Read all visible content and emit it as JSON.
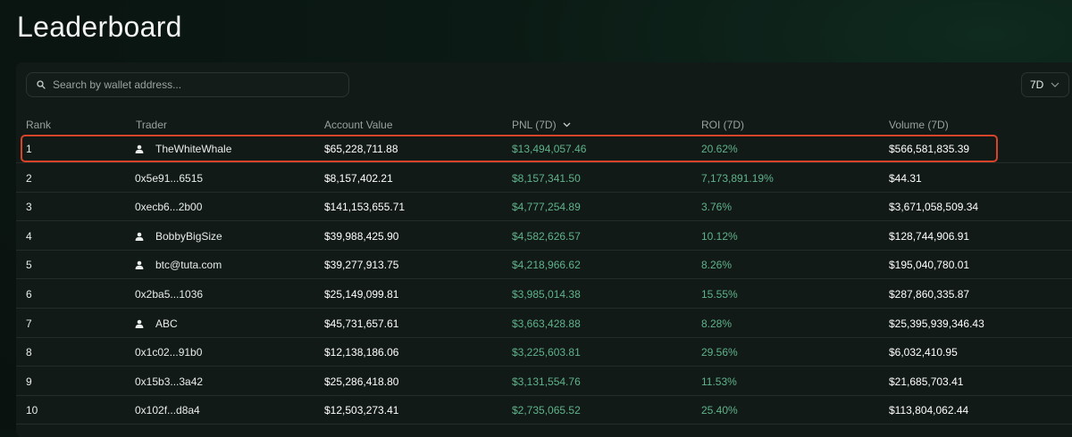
{
  "page": {
    "title": "Leaderboard"
  },
  "search": {
    "placeholder": "Search by wallet address..."
  },
  "period_selector": {
    "value": "7D"
  },
  "table": {
    "columns": {
      "rank": "Rank",
      "trader": "Trader",
      "account_value": "Account Value",
      "pnl": "PNL (7D)",
      "roi": "ROI (7D)",
      "volume": "Volume (7D)"
    },
    "sorted_by": "pnl",
    "rows": [
      {
        "rank": "1",
        "trader": "TheWhiteWhale",
        "has_profile": true,
        "account_value": "$65,228,711.88",
        "pnl": "$13,494,057.46",
        "roi": "20.62%",
        "volume": "$566,581,835.39"
      },
      {
        "rank": "2",
        "trader": "0x5e91...6515",
        "has_profile": false,
        "account_value": "$8,157,402.21",
        "pnl": "$8,157,341.50",
        "roi": "7,173,891.19%",
        "volume": "$44.31"
      },
      {
        "rank": "3",
        "trader": "0xecb6...2b00",
        "has_profile": false,
        "account_value": "$141,153,655.71",
        "pnl": "$4,777,254.89",
        "roi": "3.76%",
        "volume": "$3,671,058,509.34"
      },
      {
        "rank": "4",
        "trader": "BobbyBigSize",
        "has_profile": true,
        "account_value": "$39,988,425.90",
        "pnl": "$4,582,626.57",
        "roi": "10.12%",
        "volume": "$128,744,906.91"
      },
      {
        "rank": "5",
        "trader": "btc@tuta.com",
        "has_profile": true,
        "account_value": "$39,277,913.75",
        "pnl": "$4,218,966.62",
        "roi": "8.26%",
        "volume": "$195,040,780.01"
      },
      {
        "rank": "6",
        "trader": "0x2ba5...1036",
        "has_profile": false,
        "account_value": "$25,149,099.81",
        "pnl": "$3,985,014.38",
        "roi": "15.55%",
        "volume": "$287,860,335.87"
      },
      {
        "rank": "7",
        "trader": "ABC",
        "has_profile": true,
        "account_value": "$45,731,657.61",
        "pnl": "$3,663,428.88",
        "roi": "8.28%",
        "volume": "$25,395,939,346.43"
      },
      {
        "rank": "8",
        "trader": "0x1c02...91b0",
        "has_profile": false,
        "account_value": "$12,138,186.06",
        "pnl": "$3,225,603.81",
        "roi": "29.56%",
        "volume": "$6,032,410.95"
      },
      {
        "rank": "9",
        "trader": "0x15b3...3a42",
        "has_profile": false,
        "account_value": "$25,286,418.80",
        "pnl": "$3,131,554.76",
        "roi": "11.53%",
        "volume": "$21,685,703.41"
      },
      {
        "rank": "10",
        "trader": "0x102f...d8a4",
        "has_profile": false,
        "account_value": "$12,503,273.41",
        "pnl": "$2,735,065.52",
        "roi": "25.40%",
        "volume": "$113,804,062.44"
      }
    ]
  },
  "colors": {
    "positive": "#5fb38c",
    "highlight": "#d9432a",
    "background": "#0b1a14"
  },
  "icons": {
    "search": "search-icon",
    "profile": "person-icon",
    "sort": "chevron-down-icon",
    "dropdown": "chevron-down-icon"
  }
}
